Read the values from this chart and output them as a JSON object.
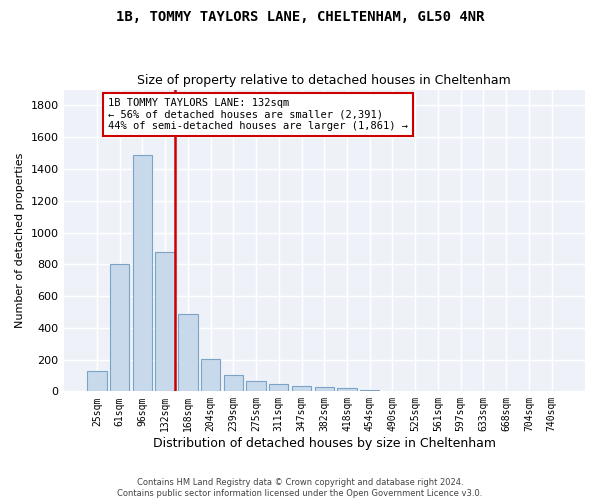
{
  "title1": "1B, TOMMY TAYLORS LANE, CHELTENHAM, GL50 4NR",
  "title2": "Size of property relative to detached houses in Cheltenham",
  "xlabel": "Distribution of detached houses by size in Cheltenham",
  "ylabel": "Number of detached properties",
  "bar_labels": [
    "25sqm",
    "61sqm",
    "96sqm",
    "132sqm",
    "168sqm",
    "204sqm",
    "239sqm",
    "275sqm",
    "311sqm",
    "347sqm",
    "382sqm",
    "418sqm",
    "454sqm",
    "490sqm",
    "525sqm",
    "561sqm",
    "597sqm",
    "633sqm",
    "668sqm",
    "704sqm",
    "740sqm"
  ],
  "bar_heights": [
    125,
    800,
    1490,
    880,
    490,
    205,
    105,
    65,
    45,
    33,
    28,
    18,
    8,
    5,
    3,
    2,
    1,
    1,
    1,
    1,
    1
  ],
  "bar_color": "#c9d9ec",
  "bar_edge_color": "#7ba3c8",
  "red_line_x": 3.425,
  "red_line_color": "#cc0000",
  "annotation_text": "1B TOMMY TAYLORS LANE: 132sqm\n← 56% of detached houses are smaller (2,391)\n44% of semi-detached houses are larger (1,861) →",
  "annotation_box_color": "#ffffff",
  "annotation_box_edge": "#cc0000",
  "ylim": [
    0,
    1900
  ],
  "yticks": [
    0,
    200,
    400,
    600,
    800,
    1000,
    1200,
    1400,
    1600,
    1800
  ],
  "background_color": "#ffffff",
  "plot_bg_color": "#eef2f8",
  "grid_color": "#ffffff",
  "footer1": "Contains HM Land Registry data © Crown copyright and database right 2024.",
  "footer2": "Contains public sector information licensed under the Open Government Licence v3.0."
}
